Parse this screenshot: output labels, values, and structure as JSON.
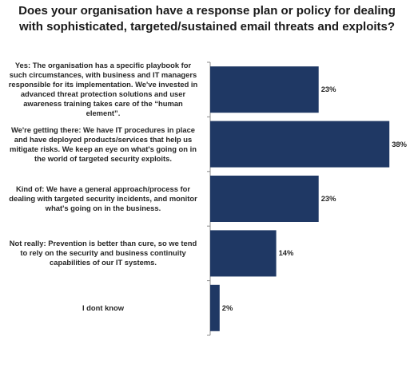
{
  "chart_data": {
    "type": "bar",
    "orientation": "horizontal",
    "title": "Does your organisation have a response plan or policy for dealing\nwith sophisticated, targeted/sustained email threats and exploits?",
    "categories": [
      "Yes: The organisation has a specific playbook for such circumstances, with business and IT managers responsible for its implementation. We've invested in advanced threat protection solutions and user awareness training takes care of the “human element”.",
      "We're getting there: We have IT procedures in place and have deployed products/services that help us mitigate risks. We keep an eye on what's going on in the world of targeted security exploits.",
      "Kind of: We have a general approach/process for dealing with targeted security incidents, and monitor what's going on in the business.",
      "Not really: Prevention is better than cure, so we tend to rely on the security and business continuity capabilities of our IT systems.",
      "I dont know"
    ],
    "values": [
      23,
      38,
      23,
      14,
      2
    ],
    "value_labels": [
      "23%",
      "38%",
      "23%",
      "14%",
      "2%"
    ],
    "xlim": [
      0,
      40
    ],
    "grid": false,
    "legend": "none",
    "colors": {
      "bar": "#1f3864",
      "axis": "#8c8c8c"
    }
  }
}
